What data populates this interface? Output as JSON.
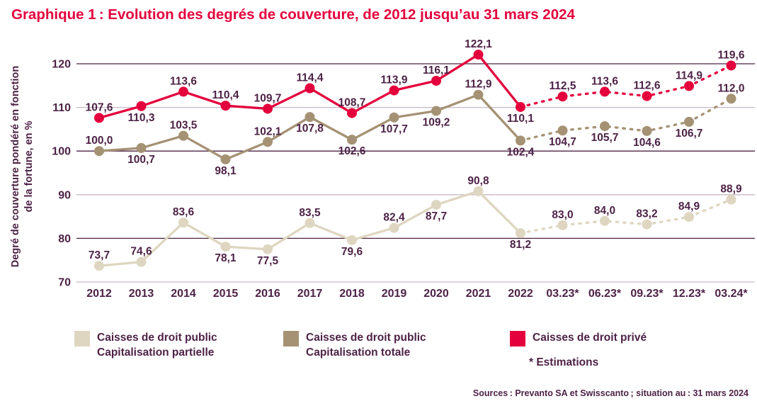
{
  "colors": {
    "title": "#e4003c",
    "text": "#4d2246",
    "grid_major": "#4d2246",
    "grid_minor": "#c9b8c7",
    "partielle": "#ded6c0",
    "totale": "#a59274",
    "prive": "#e4003c"
  },
  "chart_data": {
    "type": "line",
    "title": "Graphique 1 : Evolution des degrés de couverture, de 2012 jusqu’au 31 mars 2024",
    "ylabel_line1": "Degré de couverture pondéré en fonction",
    "ylabel_line2": "de la fortune, en %",
    "categories": [
      "2012",
      "2013",
      "2014",
      "2015",
      "2016",
      "2017",
      "2018",
      "2019",
      "2020",
      "2021",
      "2022",
      "03.23*",
      "06.23*",
      "09.23*",
      "12.23*",
      "03.24*"
    ],
    "yticks": [
      70,
      80,
      90,
      100,
      110,
      120
    ],
    "ylim": [
      70,
      123
    ],
    "legend_position": "bottom",
    "grid": "horizontal",
    "estimation_from_index": 10,
    "decimal_separator": ",",
    "series": [
      {
        "name": "Caisses de droit public Capitalisation partielle",
        "color_key": "partielle",
        "values": [
          73.7,
          74.6,
          83.6,
          78.1,
          77.5,
          83.5,
          79.6,
          82.4,
          87.7,
          90.8,
          81.2,
          83.0,
          84.0,
          83.2,
          84.9,
          88.9
        ],
        "label_pos": [
          "a",
          "a",
          "a",
          "b",
          "b",
          "a",
          "b",
          "a",
          "b",
          "a",
          "b",
          "a",
          "a",
          "a",
          "a",
          "a"
        ]
      },
      {
        "name": "Caisses de droit public Capitalisation totale",
        "color_key": "totale",
        "values": [
          100.0,
          100.7,
          103.5,
          98.1,
          102.1,
          107.8,
          102.6,
          107.7,
          109.2,
          112.9,
          102.4,
          104.7,
          105.7,
          104.6,
          106.7,
          112.0
        ],
        "label_pos": [
          "a",
          "b",
          "a",
          "b",
          "a",
          "b",
          "b",
          "b",
          "b",
          "a",
          "b",
          "b",
          "b",
          "b",
          "b",
          "a"
        ]
      },
      {
        "name": "Caisses de droit privé",
        "color_key": "prive",
        "values": [
          107.6,
          110.3,
          113.6,
          110.4,
          109.7,
          114.4,
          108.7,
          113.9,
          116.1,
          122.1,
          110.1,
          112.5,
          113.6,
          112.6,
          114.9,
          119.6
        ],
        "label_pos": [
          "a",
          "b",
          "a",
          "a",
          "a",
          "a",
          "a",
          "a",
          "a",
          "a",
          "b",
          "a",
          "a",
          "a",
          "a",
          "a"
        ]
      }
    ],
    "legend": [
      {
        "line1": "Caisses de droit public",
        "line2": "Capitalisation partielle",
        "color_key": "partielle"
      },
      {
        "line1": "Caisses de droit public",
        "line2": "Capitalisation totale",
        "color_key": "totale"
      },
      {
        "line1": "Caisses de droit privé",
        "line2": "",
        "color_key": "prive"
      }
    ],
    "footnote": "* Estimations",
    "sources": "Sources : Prevanto SA et Swisscanto ; situation au : 31 mars 2024"
  }
}
